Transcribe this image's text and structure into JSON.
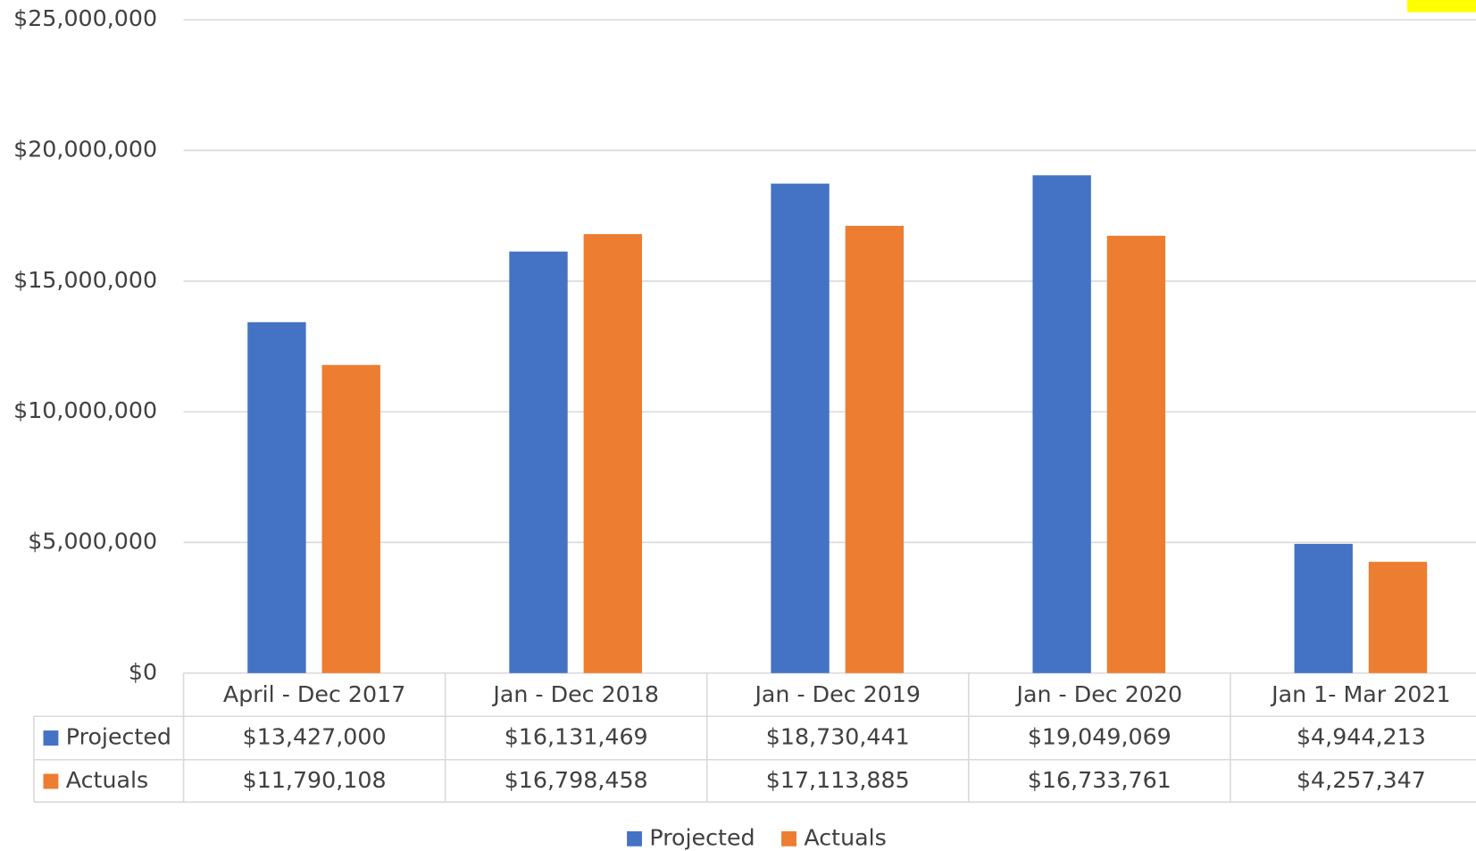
{
  "chart_data": {
    "type": "bar",
    "categories": [
      "April - Dec 2017",
      "Jan - Dec 2018",
      "Jan - Dec 2019",
      "Jan - Dec 2020",
      "Jan 1- Mar 2021"
    ],
    "series": [
      {
        "name": "Projected",
        "color": "#4472c4",
        "values": [
          13427000,
          16131469,
          18730441,
          19049069,
          4944213
        ],
        "value_labels": [
          "$13,427,000",
          "$16,131,469",
          "$18,730,441",
          "$19,049,069",
          "$4,944,213"
        ]
      },
      {
        "name": "Actuals",
        "color": "#ed7d31",
        "values": [
          11790108,
          16798458,
          17113885,
          16733761,
          4257347
        ],
        "value_labels": [
          "$11,790,108",
          "$16,798,458",
          "$17,113,885",
          "$16,733,761",
          "$4,257,347"
        ]
      }
    ],
    "ylim": [
      0,
      25000000
    ],
    "yticks": [
      {
        "value": 0,
        "label": "$0"
      },
      {
        "value": 5000000,
        "label": "$5,000,000"
      },
      {
        "value": 10000000,
        "label": "$10,000,000"
      },
      {
        "value": 15000000,
        "label": "$15,000,000"
      },
      {
        "value": 20000000,
        "label": "$20,000,000"
      },
      {
        "value": 25000000,
        "label": "$25,000,000"
      }
    ],
    "grid": true,
    "legend": "bottom"
  }
}
